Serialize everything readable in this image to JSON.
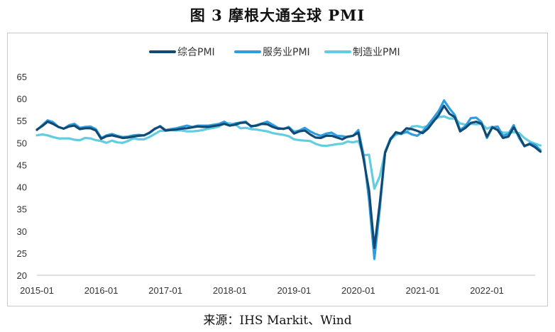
{
  "header": {
    "title": "图 3 摩根大通全球 PMI"
  },
  "footer": {
    "source": "来源：IHS Markit、Wind"
  },
  "chart_data": {
    "type": "line",
    "title": "图 3 摩根大通全球 PMI",
    "xlabel": "",
    "ylabel": "",
    "ylim": [
      20,
      65
    ],
    "yticks": [
      20,
      25,
      30,
      35,
      40,
      45,
      50,
      55,
      60,
      65
    ],
    "xtick_labels": [
      "2015-01",
      "2016-01",
      "2017-01",
      "2018-01",
      "2019-01",
      "2020-01",
      "2021-01",
      "2022-01"
    ],
    "x_start": "2015-01",
    "x_end": "2022-10",
    "grid": false,
    "legend": "top-center",
    "series": [
      {
        "name": "综合PMI",
        "color": "#124a74",
        "values": [
          53.0,
          53.8,
          54.8,
          54.3,
          53.6,
          53.2,
          53.7,
          53.9,
          53.1,
          53.3,
          53.3,
          52.8,
          50.9,
          51.5,
          51.7,
          51.4,
          51.1,
          51.2,
          51.4,
          51.6,
          51.7,
          52.3,
          53.2,
          53.7,
          52.8,
          52.9,
          53.0,
          53.2,
          53.3,
          53.5,
          53.7,
          53.6,
          53.6,
          53.8,
          54.0,
          54.3,
          53.9,
          54.1,
          54.5,
          54.6,
          53.8,
          53.9,
          54.3,
          54.2,
          53.6,
          53.2,
          53.2,
          53.4,
          52.1,
          52.6,
          52.8,
          51.9,
          51.2,
          51.1,
          51.6,
          51.6,
          51.2,
          50.8,
          51.4,
          51.6,
          52.3,
          46.1,
          39.2,
          26.2,
          36.3,
          47.7,
          50.8,
          52.4,
          52.1,
          53.3,
          53.1,
          52.7,
          52.2,
          53.2,
          54.8,
          56.3,
          58.4,
          56.6,
          55.8,
          52.6,
          53.4,
          54.5,
          54.8,
          54.3,
          51.4,
          53.5,
          52.9,
          51.1,
          51.4,
          53.5,
          51.5,
          49.3,
          49.7,
          49.0,
          48.0
        ]
      },
      {
        "name": "服务业PMI",
        "color": "#2f9ee0",
        "values": [
          52.9,
          54.0,
          55.1,
          54.7,
          53.6,
          53.2,
          54.0,
          54.3,
          53.4,
          53.6,
          53.7,
          53.1,
          51.1,
          51.7,
          52.0,
          51.6,
          51.3,
          51.4,
          51.7,
          51.8,
          51.7,
          52.2,
          53.1,
          53.8,
          52.9,
          53.1,
          53.3,
          53.6,
          53.9,
          53.6,
          53.9,
          53.9,
          53.9,
          54.1,
          54.3,
          54.8,
          53.9,
          54.4,
          54.6,
          54.8,
          53.6,
          54.0,
          54.4,
          54.8,
          54.1,
          53.4,
          53.1,
          53.6,
          52.5,
          52.8,
          53.4,
          52.6,
          52.0,
          51.6,
          52.1,
          52.3,
          51.6,
          51.5,
          51.3,
          51.6,
          52.9,
          47.1,
          37.0,
          23.7,
          35.0,
          48.0,
          51.0,
          52.2,
          52.0,
          52.5,
          51.9,
          51.6,
          52.6,
          54.0,
          55.6,
          57.2,
          59.6,
          57.8,
          56.3,
          52.9,
          53.8,
          55.6,
          55.7,
          54.7,
          51.1,
          53.5,
          53.7,
          51.6,
          52.0,
          54.0,
          51.1,
          49.2,
          49.9,
          49.5,
          48.3
        ]
      },
      {
        "name": "制造业PMI",
        "color": "#60cee0",
        "values": [
          51.7,
          51.9,
          51.7,
          51.3,
          51.0,
          51.0,
          51.0,
          50.7,
          50.6,
          51.1,
          51.0,
          50.6,
          50.4,
          50.0,
          50.5,
          50.1,
          50.0,
          50.4,
          51.0,
          50.8,
          50.8,
          51.3,
          52.0,
          52.7,
          52.7,
          52.9,
          52.8,
          52.8,
          52.6,
          52.6,
          52.7,
          52.9,
          53.2,
          53.4,
          53.7,
          54.5,
          54.4,
          54.2,
          53.3,
          53.4,
          53.1,
          53.0,
          52.8,
          52.6,
          52.2,
          52.0,
          51.8,
          51.5,
          50.8,
          50.6,
          50.5,
          50.4,
          49.8,
          49.4,
          49.3,
          49.5,
          49.7,
          49.8,
          50.3,
          50.1,
          50.4,
          47.2,
          47.3,
          39.6,
          42.4,
          47.9,
          50.7,
          51.8,
          52.3,
          52.4,
          53.7,
          53.8,
          53.5,
          53.8,
          55.0,
          55.8,
          56.0,
          55.5,
          55.5,
          54.4,
          54.1,
          54.3,
          54.2,
          54.3,
          53.2,
          53.7,
          52.9,
          52.3,
          52.3,
          52.4,
          52.2,
          51.1,
          50.3,
          49.8,
          49.4
        ]
      }
    ]
  }
}
